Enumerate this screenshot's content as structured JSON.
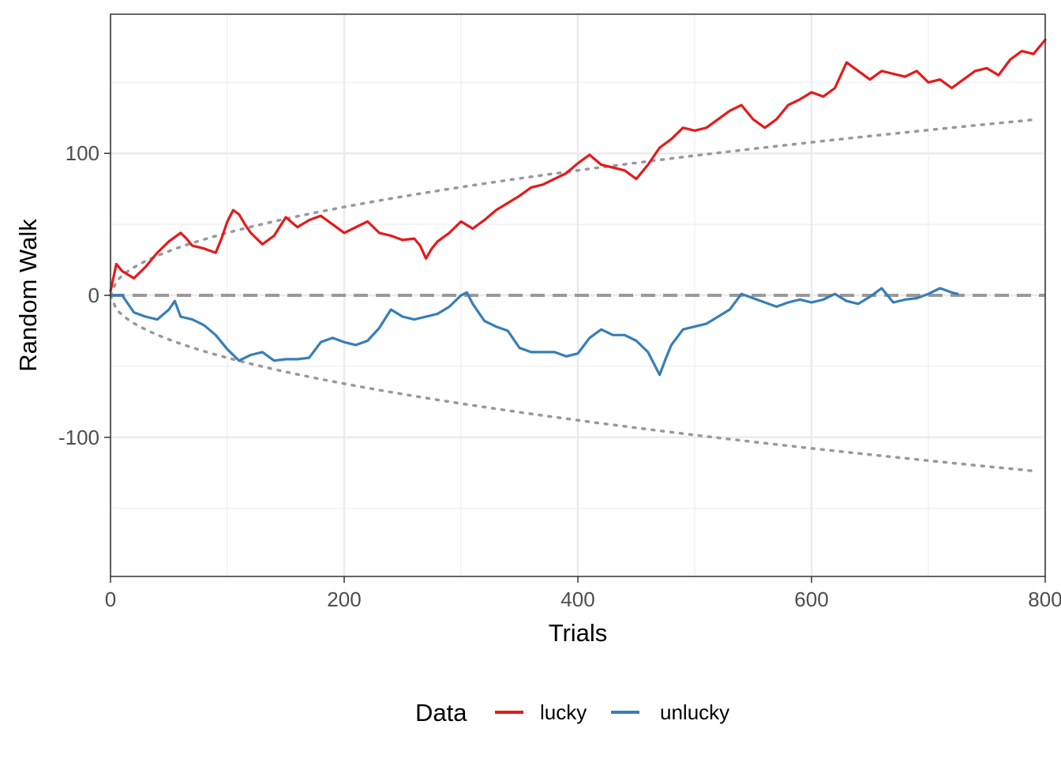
{
  "chart_data": {
    "type": "line",
    "xlabel": "Trials",
    "ylabel": "Random Walk",
    "xlim": [
      0,
      800
    ],
    "ylim": [
      -198,
      198
    ],
    "x_ticks": [
      0,
      200,
      400,
      600,
      800
    ],
    "y_ticks": [
      -100,
      0,
      100
    ],
    "x_tick_labels": [
      "0",
      "200",
      "400",
      "600",
      "800"
    ],
    "y_tick_labels": [
      "-100",
      "0",
      "100"
    ],
    "grid": true,
    "legend": {
      "title": "Data",
      "position": "bottom",
      "entries": [
        "lucky",
        "unlucky"
      ]
    },
    "series": [
      {
        "name": "lucky",
        "color": "#e41a1c",
        "x": [
          0,
          5,
          10,
          20,
          30,
          40,
          50,
          60,
          65,
          70,
          80,
          90,
          95,
          100,
          105,
          110,
          115,
          120,
          130,
          140,
          150,
          160,
          170,
          180,
          190,
          200,
          210,
          220,
          230,
          240,
          250,
          260,
          265,
          270,
          275,
          280,
          290,
          300,
          310,
          320,
          330,
          340,
          350,
          360,
          370,
          380,
          390,
          400,
          410,
          420,
          430,
          440,
          450,
          460,
          470,
          480,
          490,
          500,
          510,
          520,
          530,
          540,
          550,
          560,
          570,
          580,
          590,
          600,
          610,
          620,
          630,
          640,
          650,
          660,
          670,
          680,
          690,
          700,
          710,
          720,
          730,
          740,
          750,
          760,
          770,
          780,
          790,
          800
        ],
        "y": [
          3,
          22,
          17,
          12,
          20,
          30,
          38,
          44,
          40,
          35,
          33,
          30,
          40,
          52,
          60,
          57,
          50,
          44,
          36,
          42,
          55,
          48,
          53,
          56,
          50,
          44,
          48,
          52,
          44,
          42,
          39,
          40,
          35,
          26,
          33,
          38,
          44,
          52,
          47,
          53,
          60,
          65,
          70,
          76,
          78,
          82,
          86,
          93,
          99,
          92,
          90,
          88,
          82,
          92,
          104,
          110,
          118,
          116,
          118,
          124,
          130,
          134,
          124,
          118,
          124,
          134,
          138,
          143,
          140,
          146,
          164,
          158,
          152,
          158,
          156,
          154,
          158,
          150,
          152,
          146,
          152,
          158,
          160,
          155,
          166,
          172,
          170,
          180
        ]
      },
      {
        "name": "unlucky",
        "color": "#377eb8",
        "x": [
          0,
          10,
          20,
          30,
          40,
          50,
          55,
          60,
          70,
          80,
          90,
          100,
          110,
          120,
          130,
          140,
          150,
          160,
          170,
          180,
          190,
          200,
          210,
          220,
          230,
          240,
          250,
          260,
          270,
          280,
          290,
          300,
          305,
          310,
          320,
          330,
          340,
          350,
          360,
          370,
          380,
          390,
          400,
          410,
          420,
          430,
          440,
          450,
          460,
          470,
          475,
          480,
          490,
          500,
          510,
          520,
          530,
          540,
          550,
          560,
          570,
          580,
          590,
          600,
          610,
          620,
          630,
          640,
          650,
          660,
          670,
          680,
          690,
          700,
          710,
          720,
          725
        ],
        "y": [
          0,
          0,
          -12,
          -15,
          -17,
          -10,
          -4,
          -15,
          -17,
          -21,
          -28,
          -38,
          -46,
          -42,
          -40,
          -46,
          -45,
          -45,
          -44,
          -33,
          -30,
          -33,
          -35,
          -32,
          -23,
          -10,
          -15,
          -17,
          -15,
          -13,
          -8,
          0,
          2,
          -6,
          -18,
          -22,
          -25,
          -37,
          -40,
          -40,
          -40,
          -43,
          -41,
          -30,
          -24,
          -28,
          -28,
          -32,
          -40,
          -56,
          -45,
          -35,
          -24,
          -22,
          -20,
          -15,
          -10,
          1,
          -2,
          -5,
          -8,
          -5,
          -3,
          -5,
          -3,
          1,
          -4,
          -6,
          -1,
          5,
          -5,
          -3,
          -2,
          1,
          5,
          2,
          1
        ]
      }
    ],
    "reference_lines": [
      {
        "name": "zero-line",
        "style": "dashed",
        "color": "#999999",
        "y": 0
      },
      {
        "name": "upper-bound",
        "style": "dotted",
        "color": "#999999",
        "formula": "4.4*sqrt(x)",
        "x_range": [
          0,
          790
        ]
      },
      {
        "name": "lower-bound",
        "style": "dotted",
        "color": "#999999",
        "formula": "-4.4*sqrt(x)",
        "x_range": [
          0,
          790
        ]
      }
    ]
  }
}
